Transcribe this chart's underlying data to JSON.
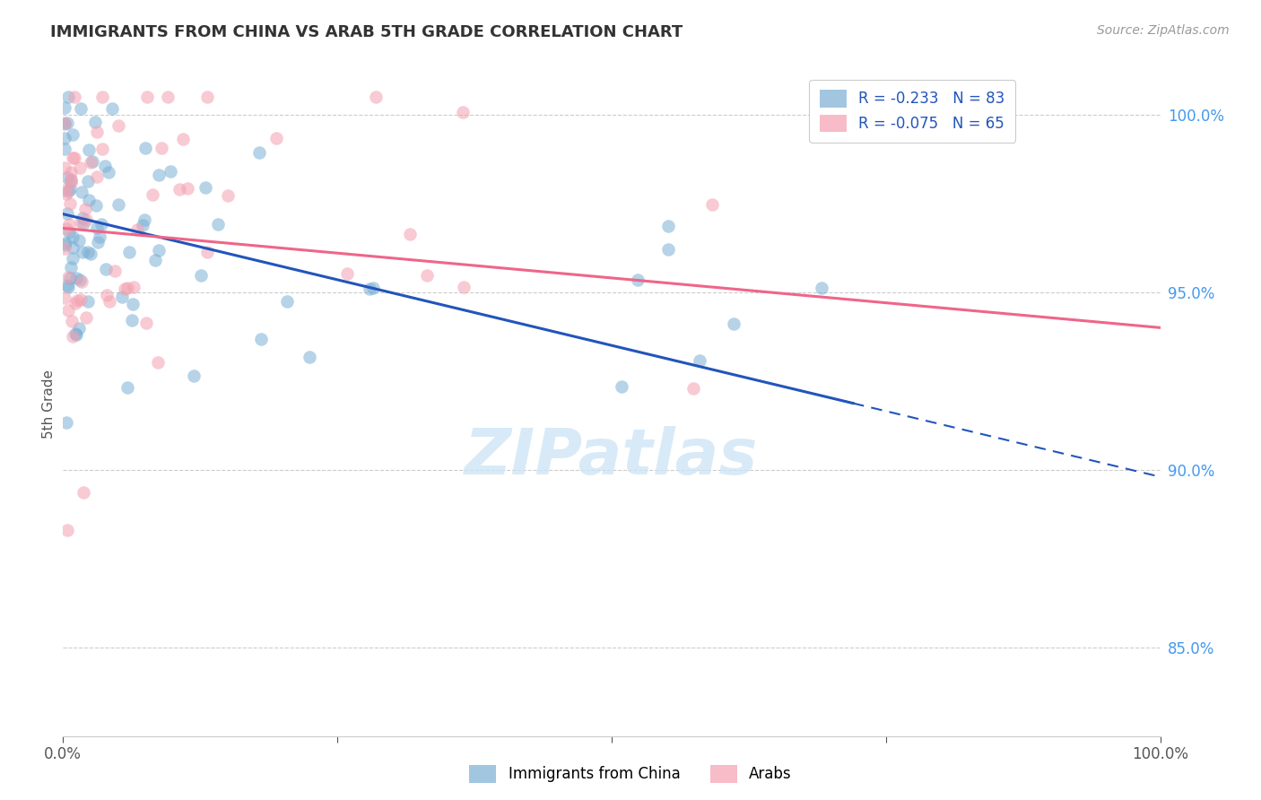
{
  "title": "IMMIGRANTS FROM CHINA VS ARAB 5TH GRADE CORRELATION CHART",
  "source": "Source: ZipAtlas.com",
  "ylabel": "5th Grade",
  "legend_china_R": "R = -0.233",
  "legend_china_N": "N = 83",
  "legend_arab_R": "R = -0.075",
  "legend_arab_N": "N = 65",
  "legend_label_china": "Immigrants from China",
  "legend_label_arab": "Arabs",
  "china_color": "#7bafd4",
  "arab_color": "#f4a0b0",
  "trendline_china_color": "#2255bb",
  "trendline_arab_color": "#ee6688",
  "watermark": "ZIPatlas",
  "china_R": -0.233,
  "arab_R": -0.075,
  "china_N": 83,
  "arab_N": 65,
  "xlim": [
    0.0,
    1.0
  ],
  "ylim": [
    0.825,
    1.012
  ],
  "yticks": [
    1.0,
    0.95,
    0.9,
    0.85
  ],
  "ytick_labels": [
    "100.0%",
    "95.0%",
    "90.0%",
    "85.0%"
  ],
  "xtick_left": "0.0%",
  "xtick_right": "100.0%",
  "trendline_china_x0": 0.0,
  "trendline_china_y0": 0.972,
  "trendline_china_x1": 1.0,
  "trendline_china_y1": 0.898,
  "trendline_china_solid_end": 0.72,
  "trendline_arab_x0": 0.0,
  "trendline_arab_y0": 0.968,
  "trendline_arab_x1": 1.0,
  "trendline_arab_y1": 0.94
}
